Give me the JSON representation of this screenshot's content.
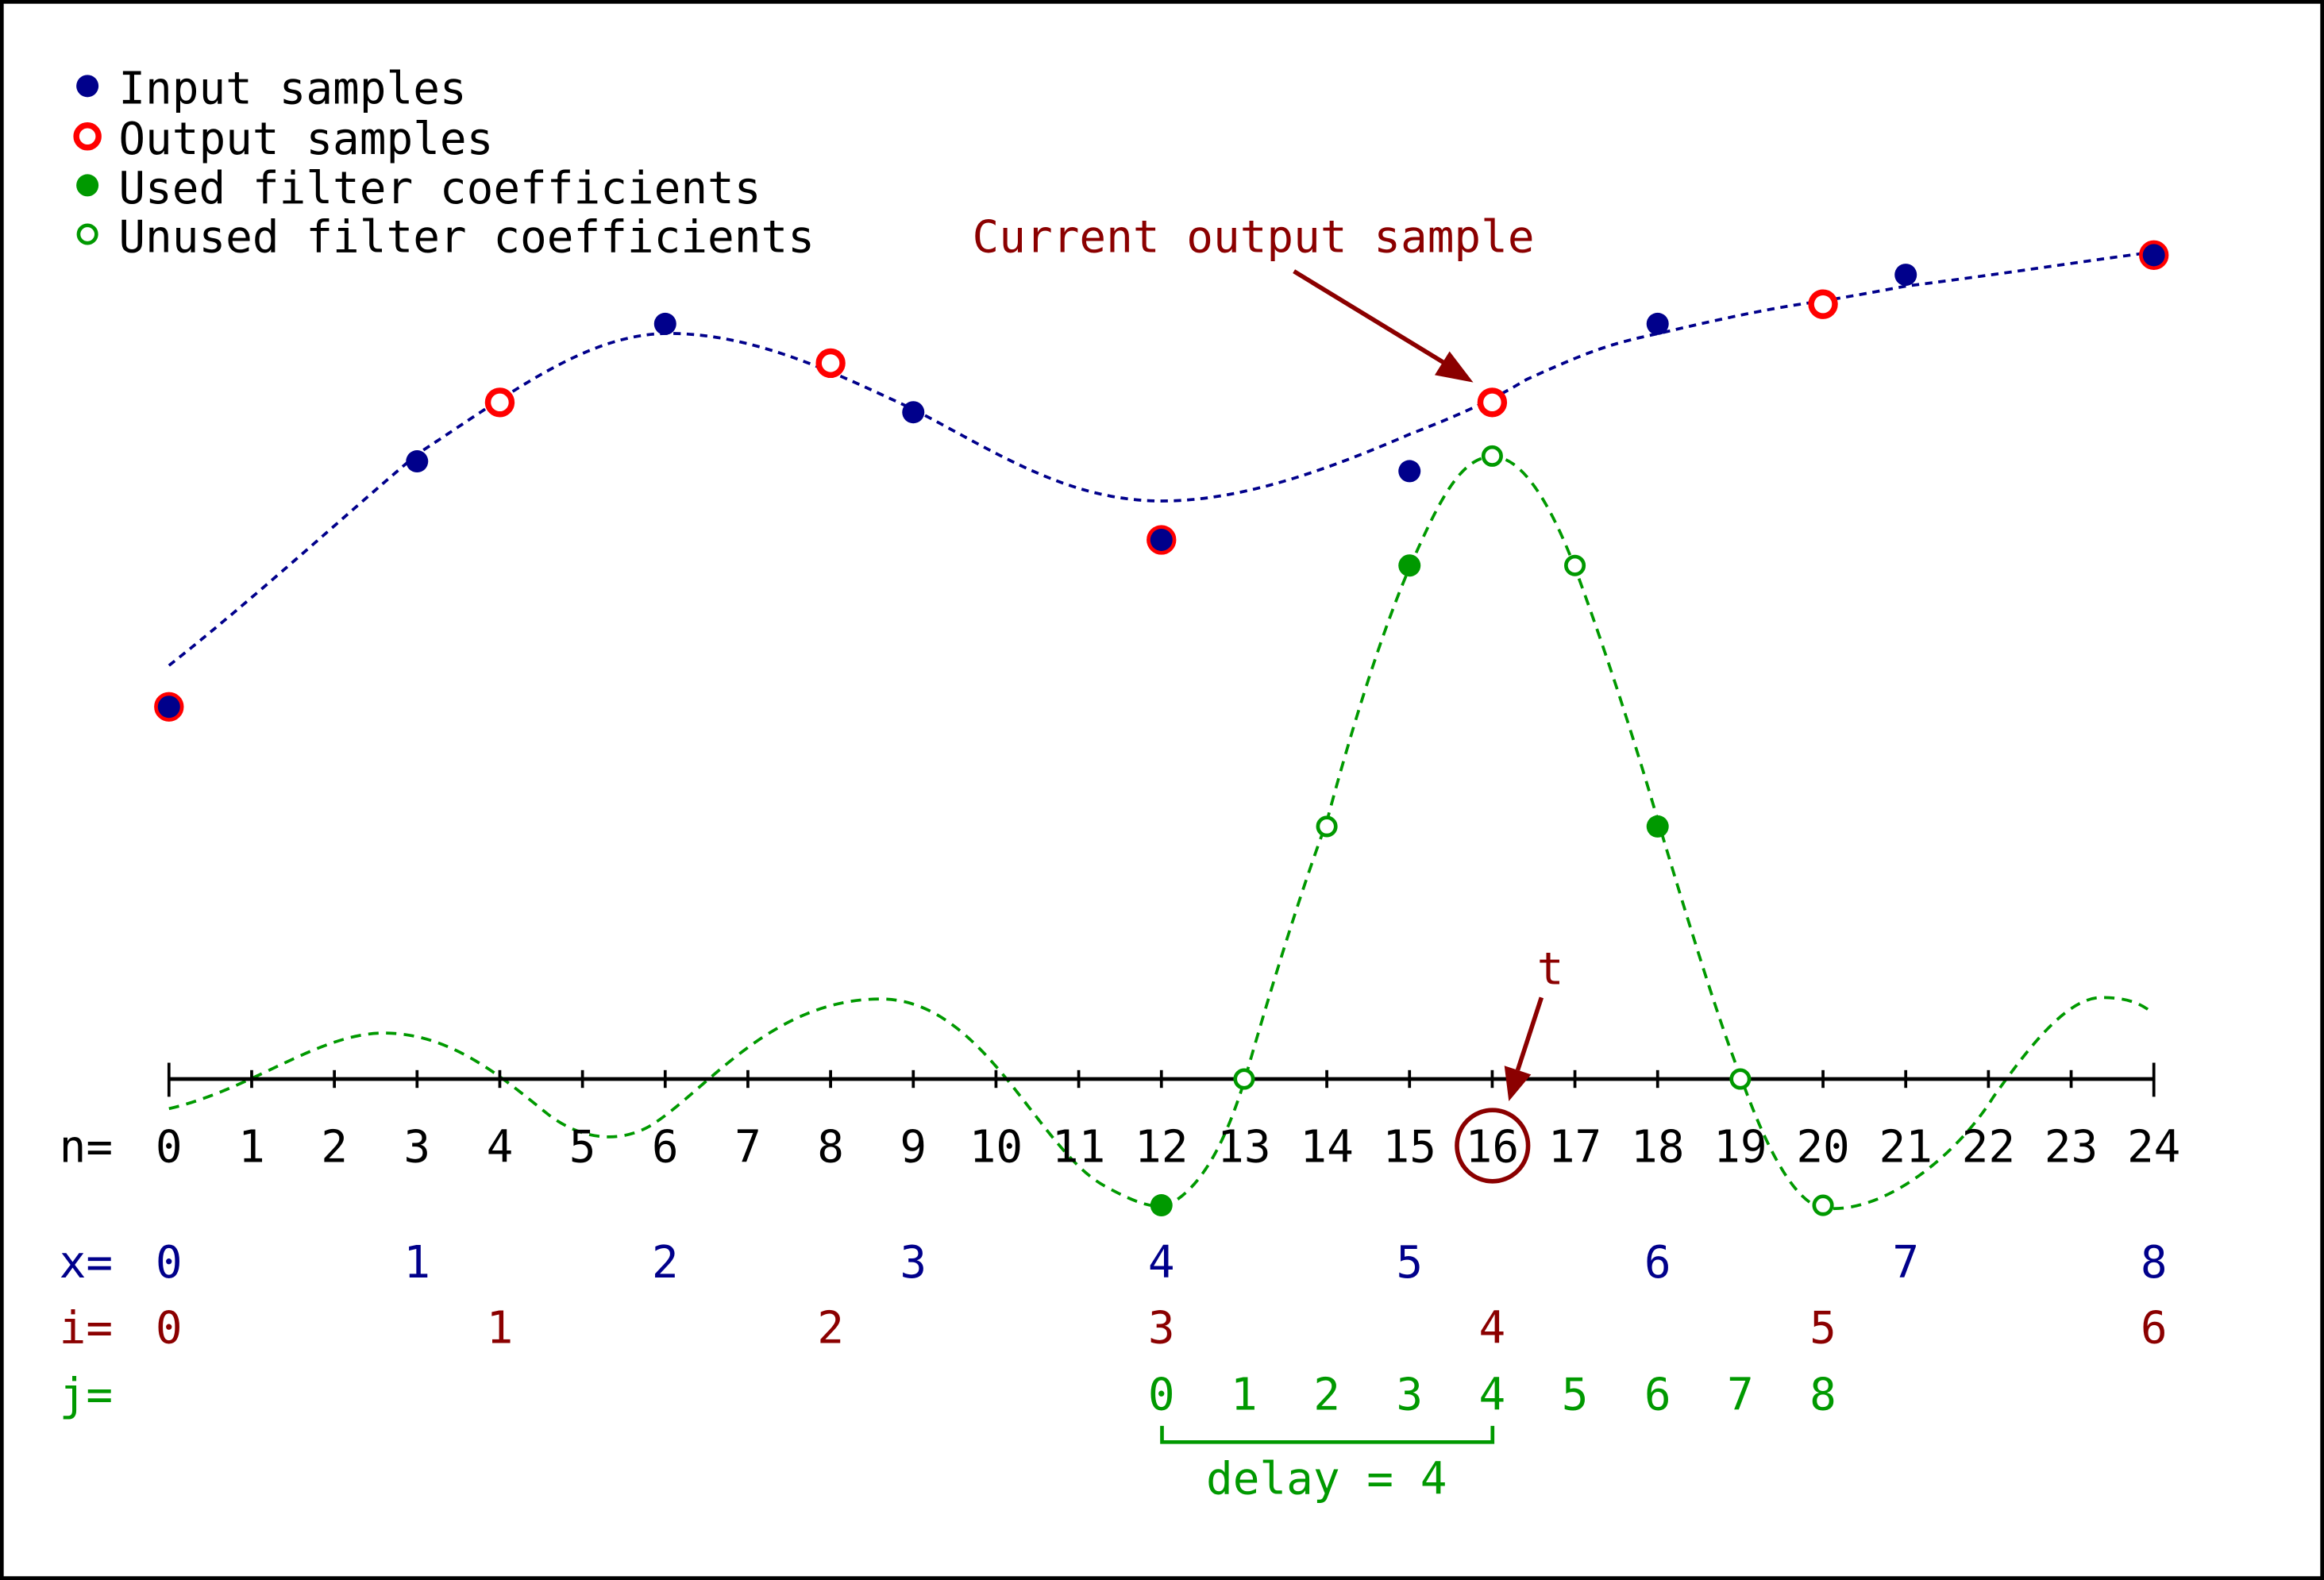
{
  "legend": [
    {
      "label": "Input samples",
      "marker": "filled-dot",
      "color": "#00008b"
    },
    {
      "label": "Output samples",
      "marker": "ring",
      "color": "#ff0000"
    },
    {
      "label": "Used filter coefficients",
      "marker": "filled-dot",
      "color": "#009900"
    },
    {
      "label": "Unused filter coefficients",
      "marker": "small-ring",
      "color": "#009900"
    }
  ],
  "annotations": {
    "current_output": "Current output sample",
    "t_label": "t",
    "delay_label": "delay = 4"
  },
  "row_labels": {
    "n": "n=",
    "x": "x=",
    "i": "i=",
    "j": "j="
  },
  "n_ticks": [
    0,
    1,
    2,
    3,
    4,
    5,
    6,
    7,
    8,
    9,
    10,
    11,
    12,
    13,
    14,
    15,
    16,
    17,
    18,
    19,
    20,
    21,
    22,
    23,
    24
  ],
  "n_labels": [
    "0",
    "1",
    "2",
    "3",
    "4",
    "5",
    "6",
    "7",
    "8",
    "9",
    "10",
    "11",
    "12",
    "13",
    "14",
    "15",
    "16",
    "17",
    "18",
    "19",
    "20",
    "21",
    "22",
    "23",
    "24"
  ],
  "highlighted_n": "16",
  "x_indices": [
    {
      "n": 0,
      "label": "0"
    },
    {
      "n": 3,
      "label": "1"
    },
    {
      "n": 6,
      "label": "2"
    },
    {
      "n": 9,
      "label": "3"
    },
    {
      "n": 12,
      "label": "4"
    },
    {
      "n": 15,
      "label": "5"
    },
    {
      "n": 18,
      "label": "6"
    },
    {
      "n": 21,
      "label": "7"
    },
    {
      "n": 24,
      "label": "8"
    }
  ],
  "i_indices": [
    {
      "n": 0,
      "label": "0"
    },
    {
      "n": 4,
      "label": "1"
    },
    {
      "n": 8,
      "label": "2"
    },
    {
      "n": 12,
      "label": "3"
    },
    {
      "n": 16,
      "label": "4"
    },
    {
      "n": 20,
      "label": "5"
    },
    {
      "n": 24,
      "label": "6"
    }
  ],
  "j_indices": [
    {
      "n": 12,
      "label": "0"
    },
    {
      "n": 13,
      "label": "1"
    },
    {
      "n": 14,
      "label": "2"
    },
    {
      "n": 15,
      "label": "3"
    },
    {
      "n": 16,
      "label": "4"
    },
    {
      "n": 17,
      "label": "5"
    },
    {
      "n": 18,
      "label": "6"
    },
    {
      "n": 19,
      "label": "7"
    },
    {
      "n": 20,
      "label": "8"
    }
  ],
  "signal": {
    "input_samples": [
      {
        "n": 0,
        "y": 0.37
      },
      {
        "n": 3,
        "y": 0.62
      },
      {
        "n": 6,
        "y": 0.76
      },
      {
        "n": 9,
        "y": 0.67
      },
      {
        "n": 12,
        "y": 0.54
      },
      {
        "n": 15,
        "y": 0.61
      },
      {
        "n": 18,
        "y": 0.76
      },
      {
        "n": 21,
        "y": 0.81
      },
      {
        "n": 24,
        "y": 0.83
      }
    ],
    "output_samples": [
      {
        "n": 0,
        "y": 0.37
      },
      {
        "n": 4,
        "y": 0.68
      },
      {
        "n": 8,
        "y": 0.72
      },
      {
        "n": 12,
        "y": 0.54
      },
      {
        "n": 16,
        "y": 0.68
      },
      {
        "n": 20,
        "y": 0.78
      },
      {
        "n": 24,
        "y": 0.83
      }
    ]
  },
  "filter": {
    "used_coefficients": [
      {
        "n": 12,
        "y": -0.15
      },
      {
        "n": 15,
        "y": 0.61
      },
      {
        "n": 18,
        "y": 0.3
      }
    ],
    "unused_coefficients": [
      {
        "n": 13,
        "y": 0.0
      },
      {
        "n": 14,
        "y": 0.3
      },
      {
        "n": 16,
        "y": 0.74
      },
      {
        "n": 17,
        "y": 0.61
      },
      {
        "n": 19,
        "y": 0.0
      },
      {
        "n": 20,
        "y": -0.15
      }
    ]
  },
  "colors": {
    "input": "#00008b",
    "output": "#ff0000",
    "filter": "#009900",
    "annotation": "#8b0000",
    "axis": "#000000"
  }
}
